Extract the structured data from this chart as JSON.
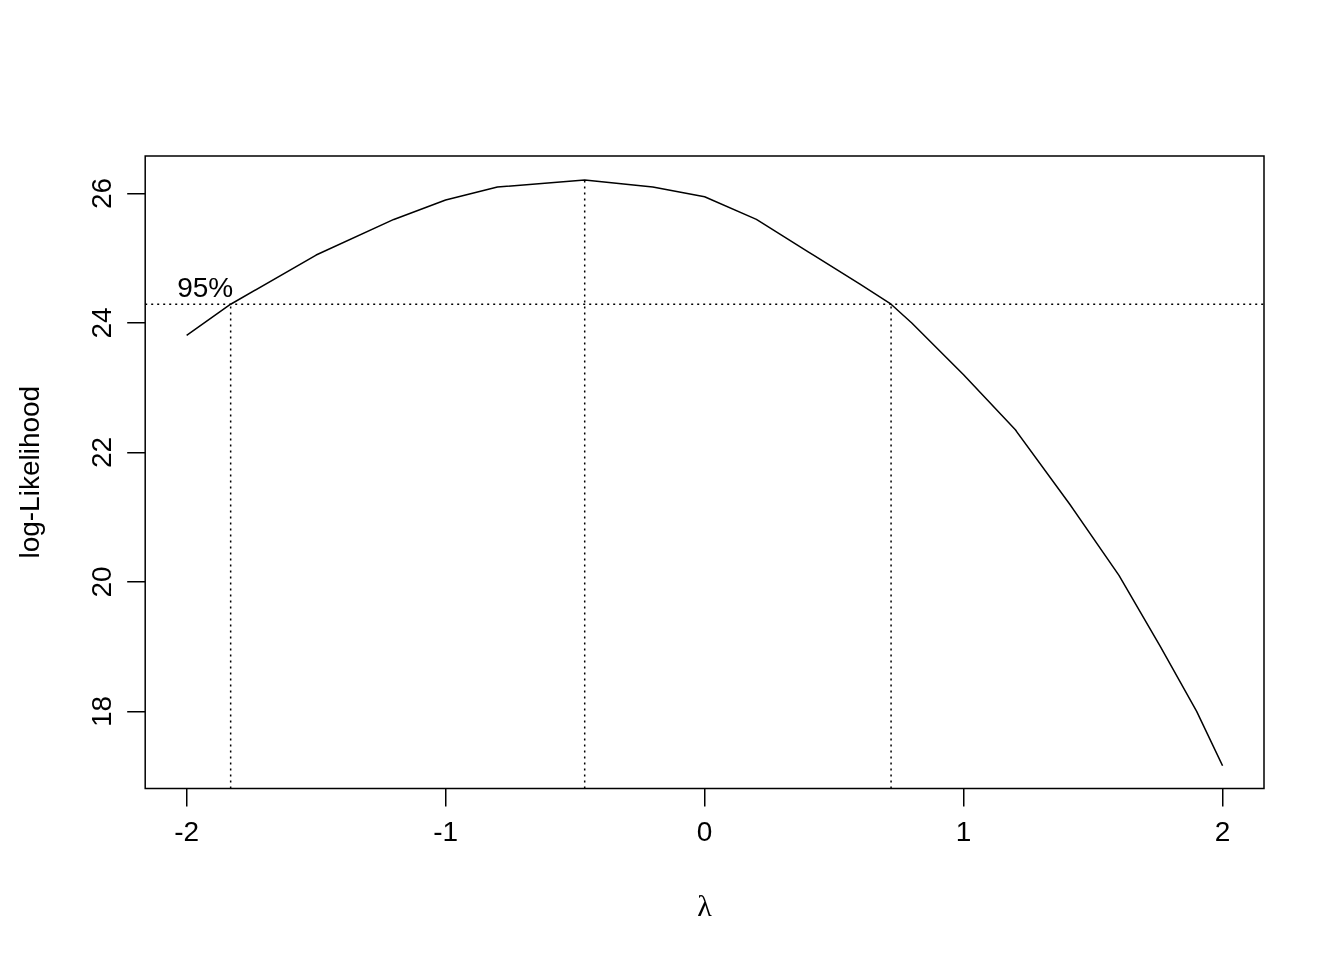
{
  "chart_data": {
    "type": "line",
    "xlabel": "λ",
    "ylabel": "log-Likelihood",
    "x": [
      -2,
      -1.83,
      -1.5,
      -1.2,
      -1.0,
      -0.8,
      -0.463,
      -0.2,
      0,
      0.2,
      0.4,
      0.6,
      0.72,
      0.8,
      1.0,
      1.2,
      1.41,
      1.6,
      1.76,
      1.9,
      2.0
    ],
    "series": [
      {
        "color": "#000000",
        "values": [
          23.81,
          24.29,
          25.05,
          25.6,
          25.9,
          26.1,
          26.21,
          26.1,
          25.95,
          25.6,
          25.1,
          24.6,
          24.29,
          24.0,
          23.2,
          22.35,
          21.2,
          20.1,
          19.0,
          18.0,
          17.16
        ]
      }
    ],
    "xlim": [
      -2.16,
      2.16
    ],
    "ylim": [
      16.81,
      26.58
    ],
    "xticks": [
      -2,
      -1,
      0,
      1,
      2
    ],
    "yticks": [
      18,
      20,
      22,
      24,
      26
    ],
    "ref_lines": [
      {
        "axis": "y",
        "value": 24.29,
        "line_style": "dotted",
        "color": "#000000"
      },
      {
        "axis": "x",
        "value": -1.83,
        "line_style": "dotted",
        "color": "#000000"
      },
      {
        "axis": "x",
        "value": -0.463,
        "line_style": "dotted",
        "color": "#000000"
      },
      {
        "axis": "x",
        "value": 0.72,
        "line_style": "dotted",
        "color": "#000000"
      }
    ],
    "annotations": [
      "95%"
    ],
    "grid": false,
    "legend": false,
    "marker": "none",
    "line_style": "solid"
  }
}
